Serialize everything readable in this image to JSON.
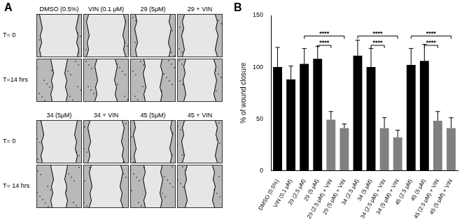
{
  "panel_a": {
    "label": "A",
    "rows": [
      {
        "headers": [
          "DMSO (0.5%)",
          "VIN (0.1 μM)",
          "29 (5μM)",
          "29 + VIN"
        ],
        "times": [
          "T= 0",
          "T=14 hrs"
        ]
      },
      {
        "headers": [
          "34 (5μM)",
          "34 + VIN",
          "45 (5μM)",
          "45 + VIN"
        ],
        "times": [
          "T= 0",
          "T= 14 hrs"
        ]
      }
    ]
  },
  "panel_b": {
    "label": "B"
  },
  "chart_data": {
    "type": "bar",
    "y_label": "% of wound closure",
    "categories": [
      "DMSO (0.5%)",
      "VIN (0.1 μM)",
      "29 (2.5 μM)",
      "29 (5 μM)",
      "29 (2.5 μM) + VIN",
      "29 (5 μM) + VIN",
      "34 (2.5 μM)",
      "34 (5 μM)",
      "34 (2.5 μM) + VIN",
      "34 (5 μM) + VIN",
      "45 (2.5 μM)",
      "45 (5 μM)",
      "45 (2.5 μM) + VIN",
      "45 (5 μM) + VIN"
    ],
    "values": [
      100,
      88,
      103,
      108,
      49,
      41,
      111,
      100,
      41,
      32,
      102,
      106,
      48,
      41
    ],
    "errors": [
      19,
      13,
      15,
      12,
      8,
      4,
      15,
      18,
      10,
      7,
      16,
      16,
      9,
      10
    ],
    "colors": [
      "#000000",
      "#000000",
      "#000000",
      "#000000",
      "#808080",
      "#808080",
      "#000000",
      "#000000",
      "#808080",
      "#808080",
      "#000000",
      "#000000",
      "#808080",
      "#808080"
    ],
    "ylim": [
      0,
      150
    ],
    "yticks": [
      0,
      50,
      100,
      150
    ],
    "grid": false,
    "significance": [
      {
        "from": "29 (2.5 μM)",
        "to": "29 (5 μM) + VIN",
        "y": 130,
        "text": "****"
      },
      {
        "from": "29 (5 μM)",
        "to": "29 (2.5 μM) + VIN",
        "y": 121,
        "text": "****"
      },
      {
        "from": "34 (2.5 μM)",
        "to": "34 (5 μM) + VIN",
        "y": 130,
        "text": "****"
      },
      {
        "from": "34 (5 μM)",
        "to": "34 (2.5 μM) + VIN",
        "y": 121,
        "text": "****"
      },
      {
        "from": "45 (2.5 μM)",
        "to": "45 (5 μM) + VIN",
        "y": 130,
        "text": "****"
      },
      {
        "from": "45 (5 μM)",
        "to": "45 (2.5 μM) + VIN",
        "y": 121,
        "text": "****"
      }
    ]
  }
}
